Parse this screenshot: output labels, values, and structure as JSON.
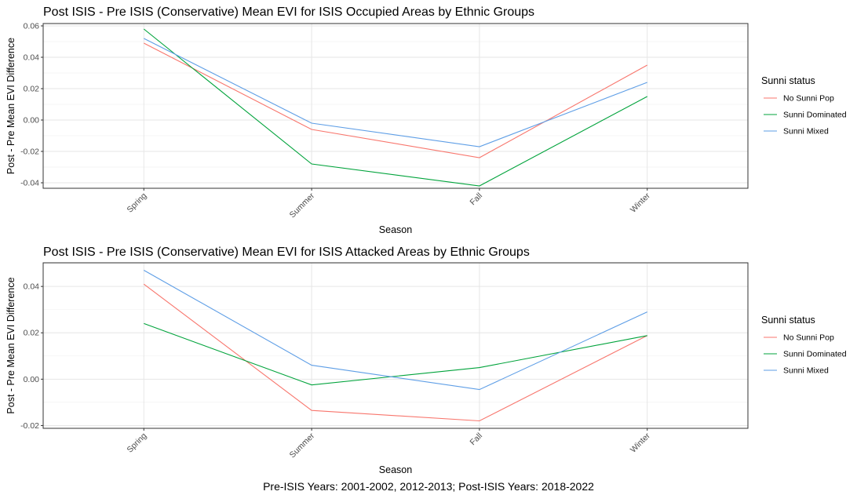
{
  "caption": "Pre-ISIS Years: 2001-2002, 2012-2013; Post-ISIS Years: 2018-2022",
  "colors": {
    "No Sunni Pop": "#F8766D",
    "Sunni Dominated": "#00A33B",
    "Sunni Mixed": "#5E9EE6",
    "grid_major": "#e6e6e6",
    "grid_minor": "#f2f2f2",
    "panel_border": "#333333",
    "tick_text": "#4d4d4d"
  },
  "chart_data": [
    {
      "type": "line",
      "title": "Post ISIS - Pre ISIS (Conservative) Mean EVI for ISIS Occupied Areas by Ethnic Groups",
      "xlabel": "Season",
      "ylabel": "Post - Pre Mean EVI Difference",
      "categories": [
        "Spring",
        "Summer",
        "Fall",
        "Winter"
      ],
      "yticks": [
        -0.04,
        -0.02,
        0.0,
        0.02,
        0.04,
        0.06
      ],
      "ytick_labels": [
        "-0.04",
        "-0.02",
        "0.00",
        "0.02",
        "0.04",
        "0.06"
      ],
      "ylim": [
        -0.0435,
        0.0615
      ],
      "grid": true,
      "legend": {
        "title": "Sunni status",
        "position": "right"
      },
      "series": [
        {
          "name": "No Sunni Pop",
          "values": [
            0.049,
            -0.006,
            -0.024,
            0.035
          ]
        },
        {
          "name": "Sunni Dominated",
          "values": [
            0.058,
            -0.028,
            -0.042,
            0.015
          ]
        },
        {
          "name": "Sunni Mixed",
          "values": [
            0.052,
            -0.002,
            -0.017,
            0.024
          ]
        }
      ]
    },
    {
      "type": "line",
      "title": "Post ISIS - Pre ISIS (Conservative) Mean EVI for ISIS Attacked Areas by Ethnic Groups",
      "xlabel": "Season",
      "ylabel": "Post - Pre Mean EVI Difference",
      "categories": [
        "Spring",
        "Summer",
        "Fall",
        "Winter"
      ],
      "yticks": [
        -0.02,
        0.0,
        0.02,
        0.04
      ],
      "ytick_labels": [
        "-0.02",
        "0.00",
        "0.02",
        "0.04"
      ],
      "ylim": [
        -0.0212,
        0.0502
      ],
      "grid": true,
      "legend": {
        "title": "Sunni status",
        "position": "right"
      },
      "series": [
        {
          "name": "No Sunni Pop",
          "values": [
            0.041,
            -0.0135,
            -0.018,
            0.0188
          ]
        },
        {
          "name": "Sunni Dominated",
          "values": [
            0.024,
            -0.0025,
            0.005,
            0.0188
          ]
        },
        {
          "name": "Sunni Mixed",
          "values": [
            0.047,
            0.006,
            -0.0045,
            0.029
          ]
        }
      ]
    }
  ]
}
